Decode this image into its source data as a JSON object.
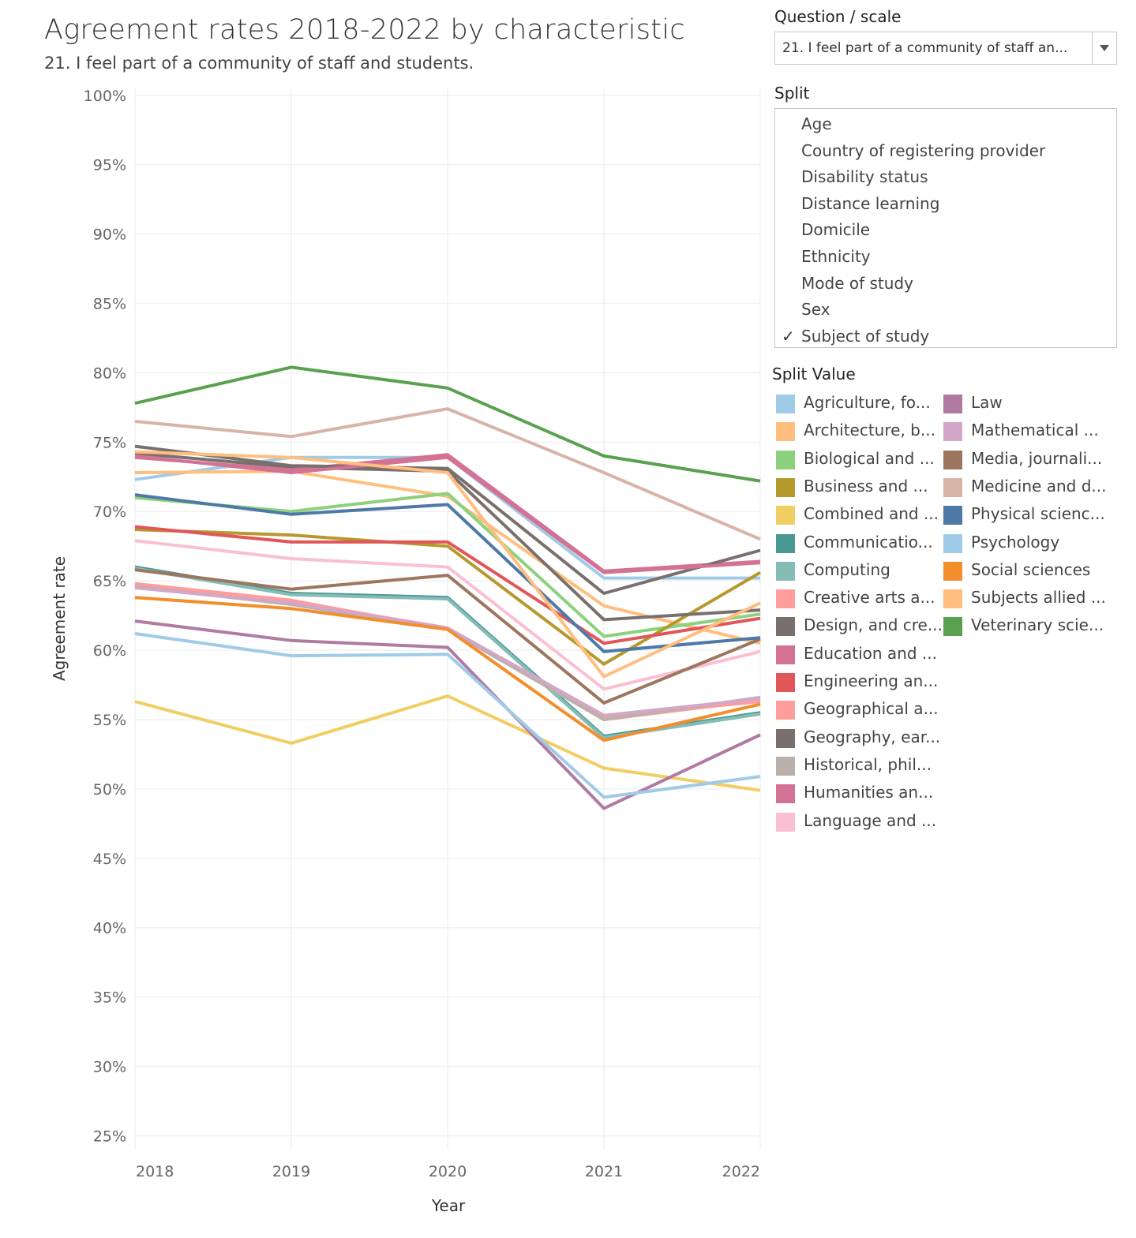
{
  "header": {
    "title": "Agreement rates 2018-2022 by characteristic",
    "subtitle": "21. I feel part of a community of staff and students."
  },
  "controls": {
    "question_label": "Question / scale",
    "question_value": "21. I feel part of a community of staff an...",
    "split_label": "Split",
    "split_options": [
      {
        "label": "Age",
        "checked": false
      },
      {
        "label": "Country of registering provider",
        "checked": false
      },
      {
        "label": "Disability status",
        "checked": false
      },
      {
        "label": "Distance learning",
        "checked": false
      },
      {
        "label": "Domicile",
        "checked": false
      },
      {
        "label": "Ethnicity",
        "checked": false
      },
      {
        "label": "Mode of study",
        "checked": false
      },
      {
        "label": "Sex",
        "checked": false
      },
      {
        "label": "Subject of study",
        "checked": true
      }
    ],
    "checkmark": "✓",
    "split_value_label": "Split Value"
  },
  "chart_data": {
    "type": "line",
    "xlabel": "Year",
    "ylabel": "Agreement rate",
    "x": [
      "2018",
      "2019",
      "2020",
      "2021",
      "2022"
    ],
    "ylim": [
      24,
      100.5
    ],
    "yticks": [
      "25%",
      "30%",
      "35%",
      "40%",
      "45%",
      "50%",
      "55%",
      "60%",
      "65%",
      "70%",
      "75%",
      "80%",
      "85%",
      "90%",
      "95%",
      "100%"
    ],
    "grid": true,
    "legend_position": "right",
    "series": [
      {
        "name": "Agriculture, fo...",
        "color": "#a0cbe8",
        "values": [
          72.3,
          73.9,
          73.9,
          65.2,
          65.2
        ]
      },
      {
        "name": "Architecture, b...",
        "color": "#ffbe7d",
        "values": [
          72.8,
          72.9,
          71.1,
          63.2,
          60.5
        ]
      },
      {
        "name": "Biological and ...",
        "color": "#8cd17d",
        "values": [
          71.0,
          70.0,
          71.3,
          61.0,
          62.6
        ]
      },
      {
        "name": "Business and ...",
        "color": "#b6992d",
        "values": [
          68.7,
          68.3,
          67.5,
          59.0,
          65.6
        ]
      },
      {
        "name": "Combined and ...",
        "color": "#f1ce63",
        "values": [
          56.3,
          53.3,
          56.7,
          51.5,
          49.9
        ]
      },
      {
        "name": "Communicatio...",
        "color": "#499894",
        "values": [
          66.0,
          64.1,
          63.8,
          53.8,
          55.5
        ]
      },
      {
        "name": "Computing",
        "color": "#86bcb6",
        "values": [
          65.9,
          64.0,
          63.7,
          53.7,
          55.4
        ]
      },
      {
        "name": "Creative arts a...",
        "color": "#ff9d9a",
        "values": [
          64.8,
          63.6,
          61.5,
          55.2,
          56.3
        ]
      },
      {
        "name": "Design, and cre...",
        "color": "#79706e",
        "values": [
          74.2,
          73.2,
          72.9,
          62.2,
          62.9
        ]
      },
      {
        "name": "Education and ...",
        "color": "#d37295",
        "values": [
          73.9,
          73.0,
          74.1,
          65.7,
          66.4
        ]
      },
      {
        "name": "Engineering an...",
        "color": "#e15759",
        "values": [
          68.9,
          67.8,
          67.8,
          60.5,
          62.3
        ]
      },
      {
        "name": "Geographical a...",
        "color": "#ff9d9a",
        "values": [
          64.7,
          63.5,
          61.6,
          55.0,
          56.4
        ]
      },
      {
        "name": "Geography, ear...",
        "color": "#79706e",
        "values": [
          74.7,
          73.3,
          73.1,
          64.1,
          67.2
        ]
      },
      {
        "name": "Historical, phil...",
        "color": "#bab0ac",
        "values": [
          64.6,
          63.3,
          61.5,
          55.0,
          56.6
        ]
      },
      {
        "name": "Humanities an...",
        "color": "#d37295",
        "values": [
          74.0,
          72.8,
          73.9,
          65.6,
          66.3
        ]
      },
      {
        "name": "Language and ...",
        "color": "#fabfd2",
        "values": [
          67.9,
          66.6,
          66.0,
          57.2,
          59.9
        ]
      },
      {
        "name": "Law",
        "color": "#b07aa1",
        "values": [
          62.1,
          60.7,
          60.2,
          48.6,
          53.9
        ]
      },
      {
        "name": "Mathematical ...",
        "color": "#d4a6c8",
        "values": [
          64.5,
          63.4,
          61.6,
          55.3,
          56.5
        ]
      },
      {
        "name": "Media, journali...",
        "color": "#9d7660",
        "values": [
          65.8,
          64.4,
          65.4,
          56.2,
          60.8
        ]
      },
      {
        "name": "Medicine and d...",
        "color": "#d7b5a6",
        "values": [
          76.5,
          75.4,
          77.4,
          72.8,
          68.0
        ]
      },
      {
        "name": "Physical scienc...",
        "color": "#4e79a7",
        "values": [
          71.2,
          69.8,
          70.5,
          59.9,
          60.9
        ]
      },
      {
        "name": "Psychology",
        "color": "#a0cbe8",
        "values": [
          61.2,
          59.6,
          59.7,
          49.4,
          50.9
        ]
      },
      {
        "name": "Social sciences",
        "color": "#f28e2b",
        "values": [
          63.8,
          63.0,
          61.5,
          53.5,
          56.1
        ]
      },
      {
        "name": "Subjects allied ...",
        "color": "#ffbe7d",
        "values": [
          74.3,
          73.9,
          72.8,
          58.1,
          63.4
        ]
      },
      {
        "name": "Veterinary scie...",
        "color": "#59a14f",
        "values": [
          77.8,
          80.4,
          78.9,
          74.0,
          72.2
        ]
      }
    ]
  }
}
